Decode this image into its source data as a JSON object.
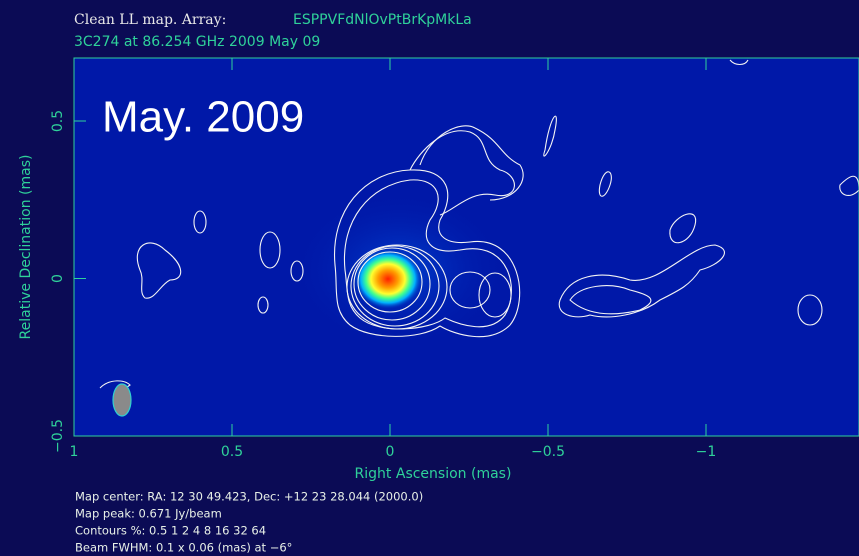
{
  "chart_data": {
    "type": "map",
    "title": "Clean LL map.  Array:",
    "array": "ESPPVFdNlOvPtBrKpMkLa",
    "subtitle": "3C274 at 86.254 GHz 2009 May 09",
    "annotation": "May. 2009",
    "xlabel": "Right Ascension  (mas)",
    "ylabel": "Relative Declination  (mas)",
    "xlim": [
      1,
      -1.49
    ],
    "ylim": [
      -0.5,
      0.7
    ],
    "xticks": [
      1,
      0.5,
      0,
      {
        "value": -0.5,
        "label": "−0.5"
      },
      {
        "value": -1,
        "label": "−1"
      }
    ],
    "yticks": [
      {
        "value": -0.5,
        "label": "−0.5"
      },
      0,
      0.5
    ],
    "notes": [
      "Map center:  RA: 12 30 49.423,  Dec: +12 23 28.044 (2000.0)",
      "Map peak: 0.671 Jy/beam",
      "Contours %: 0.5 1 2 4 8 16 32 64",
      "Beam FWHM: 0.1 x 0.06 (mas) at −6°"
    ]
  }
}
